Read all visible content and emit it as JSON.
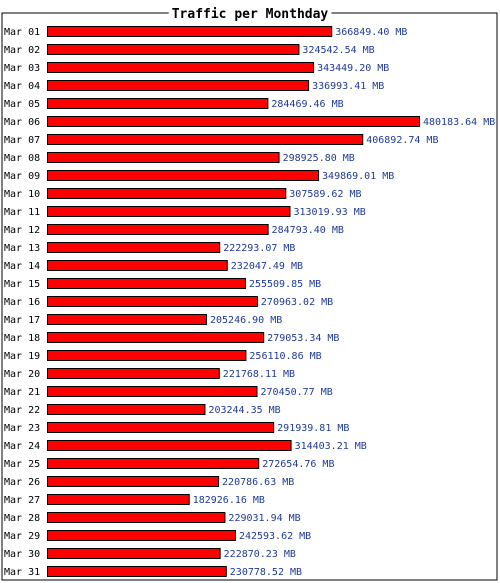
{
  "chart_data": {
    "type": "bar",
    "orientation": "horizontal",
    "title": "Traffic per Monthday",
    "unit": "MB",
    "bar_color": "#ff0000",
    "bar_border_color": "#000000",
    "value_label_color": "#1f3a93",
    "frame_color": "#000000",
    "categories": [
      "Mar 01",
      "Mar 02",
      "Mar 03",
      "Mar 04",
      "Mar 05",
      "Mar 06",
      "Mar 07",
      "Mar 08",
      "Mar 09",
      "Mar 10",
      "Mar 11",
      "Mar 12",
      "Mar 13",
      "Mar 14",
      "Mar 15",
      "Mar 16",
      "Mar 17",
      "Mar 18",
      "Mar 19",
      "Mar 20",
      "Mar 21",
      "Mar 22",
      "Mar 23",
      "Mar 24",
      "Mar 25",
      "Mar 26",
      "Mar 27",
      "Mar 28",
      "Mar 29",
      "Mar 30",
      "Mar 31"
    ],
    "values": [
      366849.4,
      324542.54,
      343449.2,
      336993.41,
      284469.46,
      480183.64,
      406892.74,
      298925.8,
      349869.01,
      307589.62,
      313019.93,
      284793.4,
      222293.07,
      232047.49,
      255509.85,
      270963.02,
      205246.9,
      279053.34,
      256110.86,
      221768.11,
      270450.77,
      203244.35,
      291939.81,
      314403.21,
      272654.76,
      220786.63,
      182926.16,
      229031.94,
      242593.62,
      222870.23,
      230778.52
    ],
    "value_labels": [
      "366849.40 MB",
      "324542.54 MB",
      "343449.20 MB",
      "336993.41 MB",
      "284469.46 MB",
      "480183.64 MB",
      "406892.74 MB",
      "298925.80 MB",
      "349869.01 MB",
      "307589.62 MB",
      "313019.93 MB",
      "284793.40 MB",
      "222293.07 MB",
      "232047.49 MB",
      "255509.85 MB",
      "270963.02 MB",
      "205246.90 MB",
      "279053.34 MB",
      "256110.86 MB",
      "221768.11 MB",
      "270450.77 MB",
      "203244.35 MB",
      "291939.81 MB",
      "314403.21 MB",
      "272654.76 MB",
      "220786.63 MB",
      "182926.16 MB",
      "229031.94 MB",
      "242593.62 MB",
      "222870.23 MB",
      "230778.52 MB"
    ],
    "xlim": [
      0,
      480183.64
    ],
    "grid": false,
    "legend": "none"
  }
}
